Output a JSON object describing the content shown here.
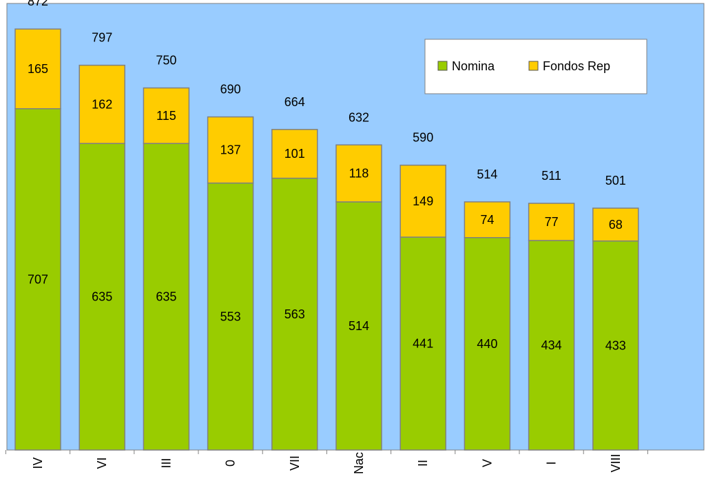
{
  "chart_data": {
    "type": "bar",
    "stacked": true,
    "title": "",
    "xlabel": "",
    "ylabel": "",
    "ylim": [
      0,
      925
    ],
    "grid": false,
    "legend_position": "top-right",
    "categories": [
      "IV",
      "VI",
      "III",
      "0",
      "VII",
      "Nac",
      "II",
      "V",
      "I",
      "VIII"
    ],
    "totals": [
      872,
      797,
      750,
      690,
      664,
      632,
      590,
      514,
      511,
      501
    ],
    "series": [
      {
        "name": "Nomina",
        "color": "#99cc00",
        "values": [
          707,
          635,
          635,
          553,
          563,
          514,
          441,
          440,
          434,
          433
        ]
      },
      {
        "name": "Fondos Rep",
        "color": "#ffcc00",
        "values": [
          165,
          162,
          115,
          137,
          101,
          118,
          149,
          74,
          77,
          68
        ]
      }
    ],
    "colors": {
      "plot_background": "#99ccff",
      "bar_border": "#808080"
    }
  }
}
